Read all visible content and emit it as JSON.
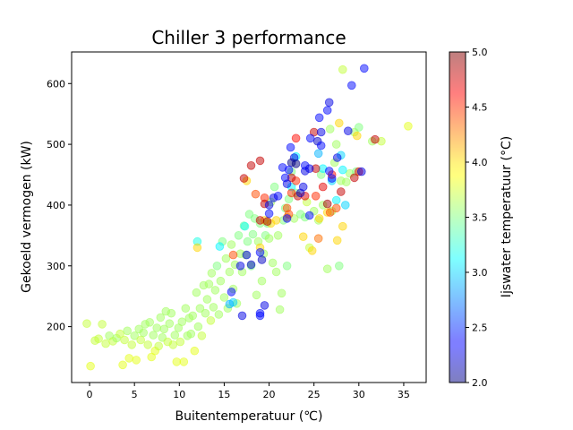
{
  "chart_data": {
    "type": "scatter",
    "title": "Chiller 3 performance",
    "xlabel": "Buitentemperatuur  (℃)",
    "ylabel": "Gekoeld vermogen (kW)",
    "colorbar_label": "Ijswater temperatuur (°C)",
    "colormap": "jet",
    "xlim": [
      -2,
      37.5
    ],
    "ylim": [
      108,
      652
    ],
    "clim": [
      2.0,
      5.0
    ],
    "xticks": [
      "0",
      "5",
      "10",
      "15",
      "20",
      "25",
      "30",
      "35"
    ],
    "yticks": [
      "200",
      "300",
      "400",
      "500",
      "600"
    ],
    "cticks": [
      "2.0",
      "2.5",
      "3.0",
      "3.5",
      "4.0",
      "4.5",
      "5.0"
    ],
    "grid": false,
    "points": [
      [
        -0.3,
        205,
        3.7
      ],
      [
        0.1,
        135,
        3.8
      ],
      [
        0.6,
        177,
        3.7
      ],
      [
        1.0,
        180,
        3.7
      ],
      [
        1.4,
        204,
        3.7
      ],
      [
        1.8,
        172,
        3.7
      ],
      [
        2.2,
        185,
        3.6
      ],
      [
        2.6,
        176,
        3.7
      ],
      [
        3.0,
        181,
        3.6
      ],
      [
        3.4,
        188,
        3.7
      ],
      [
        3.7,
        137,
        3.8
      ],
      [
        3.9,
        178,
        3.7
      ],
      [
        4.2,
        193,
        3.6
      ],
      [
        4.4,
        148,
        3.8
      ],
      [
        4.7,
        170,
        3.7
      ],
      [
        5.0,
        185,
        3.6
      ],
      [
        5.2,
        145,
        3.8
      ],
      [
        5.5,
        196,
        3.6
      ],
      [
        5.7,
        178,
        3.7
      ],
      [
        6.0,
        190,
        3.6
      ],
      [
        6.2,
        204,
        3.6
      ],
      [
        6.5,
        170,
        3.7
      ],
      [
        6.7,
        207,
        3.6
      ],
      [
        6.9,
        150,
        3.8
      ],
      [
        7.1,
        186,
        3.6
      ],
      [
        7.3,
        160,
        3.8
      ],
      [
        7.5,
        198,
        3.6
      ],
      [
        7.7,
        168,
        3.7
      ],
      [
        7.9,
        215,
        3.6
      ],
      [
        8.1,
        182,
        3.6
      ],
      [
        8.3,
        196,
        3.6
      ],
      [
        8.5,
        225,
        3.6
      ],
      [
        8.7,
        175,
        3.7
      ],
      [
        8.9,
        205,
        3.6
      ],
      [
        9.1,
        222,
        3.6
      ],
      [
        9.3,
        170,
        3.7
      ],
      [
        9.5,
        186,
        3.6
      ],
      [
        9.7,
        142,
        3.8
      ],
      [
        9.9,
        198,
        3.6
      ],
      [
        10.1,
        175,
        3.7
      ],
      [
        10.3,
        208,
        3.6
      ],
      [
        10.5,
        142,
        3.8
      ],
      [
        10.7,
        230,
        3.6
      ],
      [
        10.9,
        185,
        3.6
      ],
      [
        11.1,
        214,
        3.6
      ],
      [
        11.3,
        188,
        3.6
      ],
      [
        11.5,
        218,
        3.6
      ],
      [
        11.7,
        160,
        3.8
      ],
      [
        11.9,
        256,
        3.6
      ],
      [
        12.1,
        200,
        3.6
      ],
      [
        12.3,
        230,
        3.6
      ],
      [
        12.5,
        185,
        3.7
      ],
      [
        12.7,
        268,
        3.6
      ],
      [
        12.9,
        222,
        3.6
      ],
      [
        13.1,
        245,
        3.6
      ],
      [
        13.3,
        270,
        3.6
      ],
      [
        13.5,
        210,
        3.7
      ],
      [
        13.6,
        288,
        3.6
      ],
      [
        13.8,
        232,
        3.6
      ],
      [
        14.0,
        260,
        3.6
      ],
      [
        14.2,
        300,
        3.5
      ],
      [
        14.4,
        220,
        3.6
      ],
      [
        14.6,
        275,
        3.6
      ],
      [
        14.8,
        340,
        3.5
      ],
      [
        15.0,
        248,
        3.6
      ],
      [
        15.2,
        312,
        3.6
      ],
      [
        15.4,
        230,
        3.6
      ],
      [
        15.6,
        290,
        3.6
      ],
      [
        15.8,
        335,
        3.6
      ],
      [
        16.0,
        262,
        3.6
      ],
      [
        16.2,
        302,
        3.6
      ],
      [
        16.4,
        238,
        3.6
      ],
      [
        16.6,
        350,
        3.5
      ],
      [
        16.8,
        320,
        3.6
      ],
      [
        17.0,
        290,
        3.6
      ],
      [
        17.2,
        366,
        3.4
      ],
      [
        17.4,
        318,
        3.6
      ],
      [
        17.6,
        340,
        3.5
      ],
      [
        17.8,
        385,
        3.5
      ],
      [
        18.0,
        300,
        3.5
      ],
      [
        18.2,
        352,
        3.5
      ],
      [
        18.4,
        378,
        3.5
      ],
      [
        18.6,
        252,
        3.6
      ],
      [
        18.8,
        340,
        3.6
      ],
      [
        19.0,
        370,
        3.5
      ],
      [
        19.2,
        275,
        3.6
      ],
      [
        19.4,
        320,
        3.6
      ],
      [
        19.6,
        350,
        3.5
      ],
      [
        19.8,
        370,
        3.5
      ],
      [
        20.0,
        345,
        3.6
      ],
      [
        20.2,
        405,
        3.6
      ],
      [
        20.4,
        305,
        3.6
      ],
      [
        20.6,
        430,
        3.5
      ],
      [
        20.8,
        290,
        3.6
      ],
      [
        21.0,
        350,
        3.6
      ],
      [
        21.2,
        228,
        3.6
      ],
      [
        21.4,
        255,
        3.6
      ],
      [
        21.6,
        375,
        3.5
      ],
      [
        21.8,
        395,
        3.5
      ],
      [
        22.0,
        300,
        3.5
      ],
      [
        22.2,
        410,
        3.5
      ],
      [
        22.5,
        455,
        3.5
      ],
      [
        23.0,
        420,
        3.5
      ],
      [
        23.5,
        385,
        3.5
      ],
      [
        24.0,
        380,
        3.5
      ],
      [
        24.5,
        330,
        3.7
      ],
      [
        25.0,
        390,
        3.6
      ],
      [
        25.5,
        375,
        3.6
      ],
      [
        26.0,
        400,
        3.6
      ],
      [
        26.5,
        295,
        3.6
      ],
      [
        27.0,
        390,
        3.6
      ],
      [
        27.5,
        500,
        3.6
      ],
      [
        27.8,
        300,
        3.5
      ],
      [
        28.2,
        623,
        3.7
      ],
      [
        28.6,
        438,
        3.6
      ],
      [
        29.0,
        452,
        3.6
      ],
      [
        29.5,
        520,
        3.6
      ],
      [
        30.0,
        528,
        3.5
      ],
      [
        32.5,
        505,
        3.7
      ],
      [
        35.5,
        530,
        3.8
      ],
      [
        29.7,
        455,
        3.5
      ],
      [
        26.8,
        525,
        3.6
      ],
      [
        27.3,
        470,
        3.6
      ],
      [
        25.8,
        450,
        3.5
      ],
      [
        24.2,
        405,
        3.7
      ],
      [
        22.8,
        378,
        3.6
      ],
      [
        28.0,
        440,
        3.6
      ],
      [
        31.5,
        505,
        3.6
      ],
      [
        12.0,
        340,
        3.2
      ],
      [
        14.5,
        332,
        3.1
      ],
      [
        16.0,
        240,
        3.0
      ],
      [
        17.3,
        365,
        3.2
      ],
      [
        22.5,
        430,
        3.1
      ],
      [
        23.0,
        480,
        3.1
      ],
      [
        26.0,
        460,
        3.1
      ],
      [
        27.0,
        440,
        3.0
      ],
      [
        27.5,
        408,
        3.1
      ],
      [
        28.0,
        482,
        3.0
      ],
      [
        28.2,
        458,
        3.1
      ],
      [
        28.5,
        400,
        3.0
      ],
      [
        25.5,
        485,
        2.9
      ],
      [
        15.6,
        237,
        2.9
      ],
      [
        12.0,
        330,
        4.0
      ],
      [
        17.5,
        440,
        4.0
      ],
      [
        19.5,
        375,
        4.0
      ],
      [
        20.8,
        375,
        4.0
      ],
      [
        22.0,
        380,
        4.1
      ],
      [
        23.8,
        348,
        4.0
      ],
      [
        24.8,
        325,
        4.0
      ],
      [
        25.6,
        378,
        4.0
      ],
      [
        26.5,
        388,
        4.0
      ],
      [
        27.6,
        342,
        4.0
      ],
      [
        28.2,
        365,
        4.0
      ],
      [
        29.8,
        514,
        4.0
      ],
      [
        27.8,
        535,
        4.0
      ],
      [
        19.0,
        330,
        4.0
      ],
      [
        20.2,
        370,
        4.0
      ],
      [
        16.0,
        318,
        4.4
      ],
      [
        18.5,
        418,
        4.4
      ],
      [
        19.5,
        412,
        4.5
      ],
      [
        22.0,
        395,
        4.4
      ],
      [
        22.2,
        385,
        4.4
      ],
      [
        23.0,
        440,
        4.5
      ],
      [
        25.2,
        415,
        4.5
      ],
      [
        26.8,
        388,
        4.4
      ],
      [
        27.5,
        395,
        4.4
      ],
      [
        22.5,
        420,
        4.5
      ],
      [
        25.5,
        345,
        4.3
      ],
      [
        18.0,
        465,
        4.8
      ],
      [
        19.0,
        473,
        4.8
      ],
      [
        19.0,
        375,
        4.8
      ],
      [
        19.5,
        402,
        4.8
      ],
      [
        22.5,
        445,
        4.8
      ],
      [
        23.0,
        510,
        4.6
      ],
      [
        24.0,
        415,
        4.7
      ],
      [
        25.0,
        520,
        4.8
      ],
      [
        25.2,
        460,
        4.8
      ],
      [
        26.0,
        430,
        4.7
      ],
      [
        27.0,
        450,
        4.6
      ],
      [
        28.0,
        422,
        4.8
      ],
      [
        29.5,
        445,
        4.8
      ],
      [
        30.0,
        455,
        4.7
      ],
      [
        31.8,
        508,
        4.8
      ],
      [
        17.2,
        444,
        4.8
      ],
      [
        19.8,
        373,
        4.9
      ],
      [
        23.2,
        415,
        4.8
      ],
      [
        26.5,
        402,
        4.9
      ],
      [
        30.6,
        625,
        2.4
      ],
      [
        29.2,
        597,
        2.4
      ],
      [
        26.7,
        569,
        2.3
      ],
      [
        25.6,
        544,
        2.4
      ],
      [
        26.5,
        556,
        2.4
      ],
      [
        28.8,
        522,
        2.3
      ],
      [
        22.4,
        495,
        2.4
      ],
      [
        25.8,
        520,
        2.3
      ],
      [
        25.4,
        505,
        2.2
      ],
      [
        24.6,
        510,
        2.4
      ],
      [
        22.8,
        478,
        2.3
      ],
      [
        22.5,
        470,
        2.0
      ],
      [
        23.0,
        468,
        2.0
      ],
      [
        24.0,
        456,
        2.3
      ],
      [
        26.7,
        456,
        2.4
      ],
      [
        27.6,
        478,
        2.3
      ],
      [
        21.5,
        462,
        2.4
      ],
      [
        21.8,
        445,
        2.4
      ],
      [
        22.0,
        435,
        2.3
      ],
      [
        21.0,
        415,
        2.4
      ],
      [
        20.5,
        412,
        2.3
      ],
      [
        23.5,
        420,
        2.2
      ],
      [
        24.5,
        383,
        2.4
      ],
      [
        22.0,
        378,
        2.4
      ],
      [
        17.5,
        318,
        2.3
      ],
      [
        19.0,
        322,
        2.4
      ],
      [
        19.2,
        310,
        2.2
      ],
      [
        18.0,
        302,
        2.2
      ],
      [
        16.8,
        300,
        2.3
      ],
      [
        19.0,
        222,
        2.4
      ],
      [
        17.0,
        218,
        2.3
      ],
      [
        15.8,
        257,
        2.4
      ],
      [
        19.5,
        235,
        2.3
      ],
      [
        20.0,
        400,
        2.3
      ],
      [
        24.0,
        465,
        2.4
      ],
      [
        24.5,
        460,
        2.3
      ],
      [
        25.8,
        498,
        2.4
      ],
      [
        23.8,
        430,
        2.3
      ],
      [
        22.2,
        458,
        2.4
      ],
      [
        19.0,
        218,
        2.4
      ],
      [
        20.0,
        386,
        2.4
      ],
      [
        27.0,
        444,
        2.4
      ],
      [
        30.3,
        455,
        2.3
      ]
    ]
  }
}
